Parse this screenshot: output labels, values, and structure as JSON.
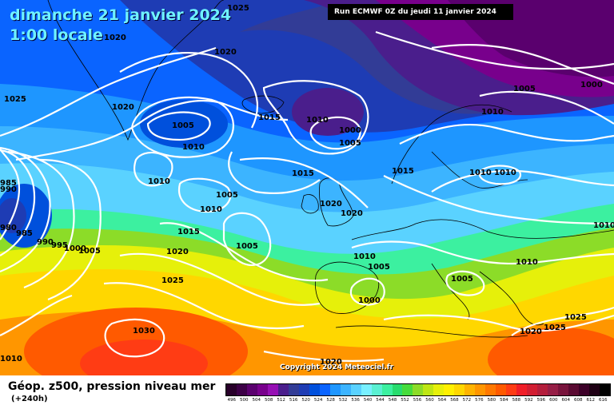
{
  "header": {
    "date": "dimanche 21 janvier 2024",
    "time": "1:00 locale",
    "run": "Run ECMWF 0Z du jeudi 11 janvier 2024"
  },
  "copyright": "Copyright 2024 Meteociel.fr",
  "footer": {
    "title": "Géop. z500, pression niveau mer",
    "subtitle": "(+240h)"
  },
  "pressure_labels": [
    "1025",
    "1020",
    "1020",
    "1025",
    "1020",
    "1005",
    "1010",
    "1015",
    "1010",
    "1000",
    "1005",
    "1005",
    "1000",
    "1010",
    "1015",
    "1010",
    "1010",
    "1015",
    "1005",
    "1010",
    "1020",
    "1020",
    "1015",
    "1005",
    "1020",
    "1010",
    "1005",
    "1010",
    "1005",
    "1025",
    "1000",
    "1030",
    "1025",
    "1020",
    "1025",
    "1010",
    "1010",
    "985",
    "990",
    "980",
    "985",
    "990",
    "995",
    "1000",
    "1005",
    "1010",
    "1020"
  ],
  "legend": {
    "colors": [
      "#28002a",
      "#3c0046",
      "#5a006e",
      "#78008c",
      "#9610b4",
      "#4a1e8c",
      "#323c96",
      "#1e3cb4",
      "#0050dc",
      "#0a64ff",
      "#1e96ff",
      "#3cb4ff",
      "#5ad2ff",
      "#78f0ff",
      "#5af0d2",
      "#3cf0a0",
      "#28dc6e",
      "#46dc3c",
      "#8cdc28",
      "#bee614",
      "#e6f00a",
      "#fff000",
      "#ffd700",
      "#ffb400",
      "#ff9600",
      "#ff7800",
      "#ff5a00",
      "#ff3c14",
      "#f01e28",
      "#d21e32",
      "#b41e3c",
      "#961e46",
      "#78143c",
      "#5a0a32",
      "#3c0028",
      "#1e0014",
      "#000000"
    ],
    "labels": [
      "496",
      "500",
      "504",
      "508",
      "512",
      "516",
      "520",
      "524",
      "528",
      "532",
      "536",
      "540",
      "544",
      "548",
      "552",
      "556",
      "560",
      "564",
      "568",
      "572",
      "576",
      "580",
      "584",
      "588",
      "592",
      "596",
      "600",
      "604",
      "608",
      "612",
      "616"
    ]
  }
}
